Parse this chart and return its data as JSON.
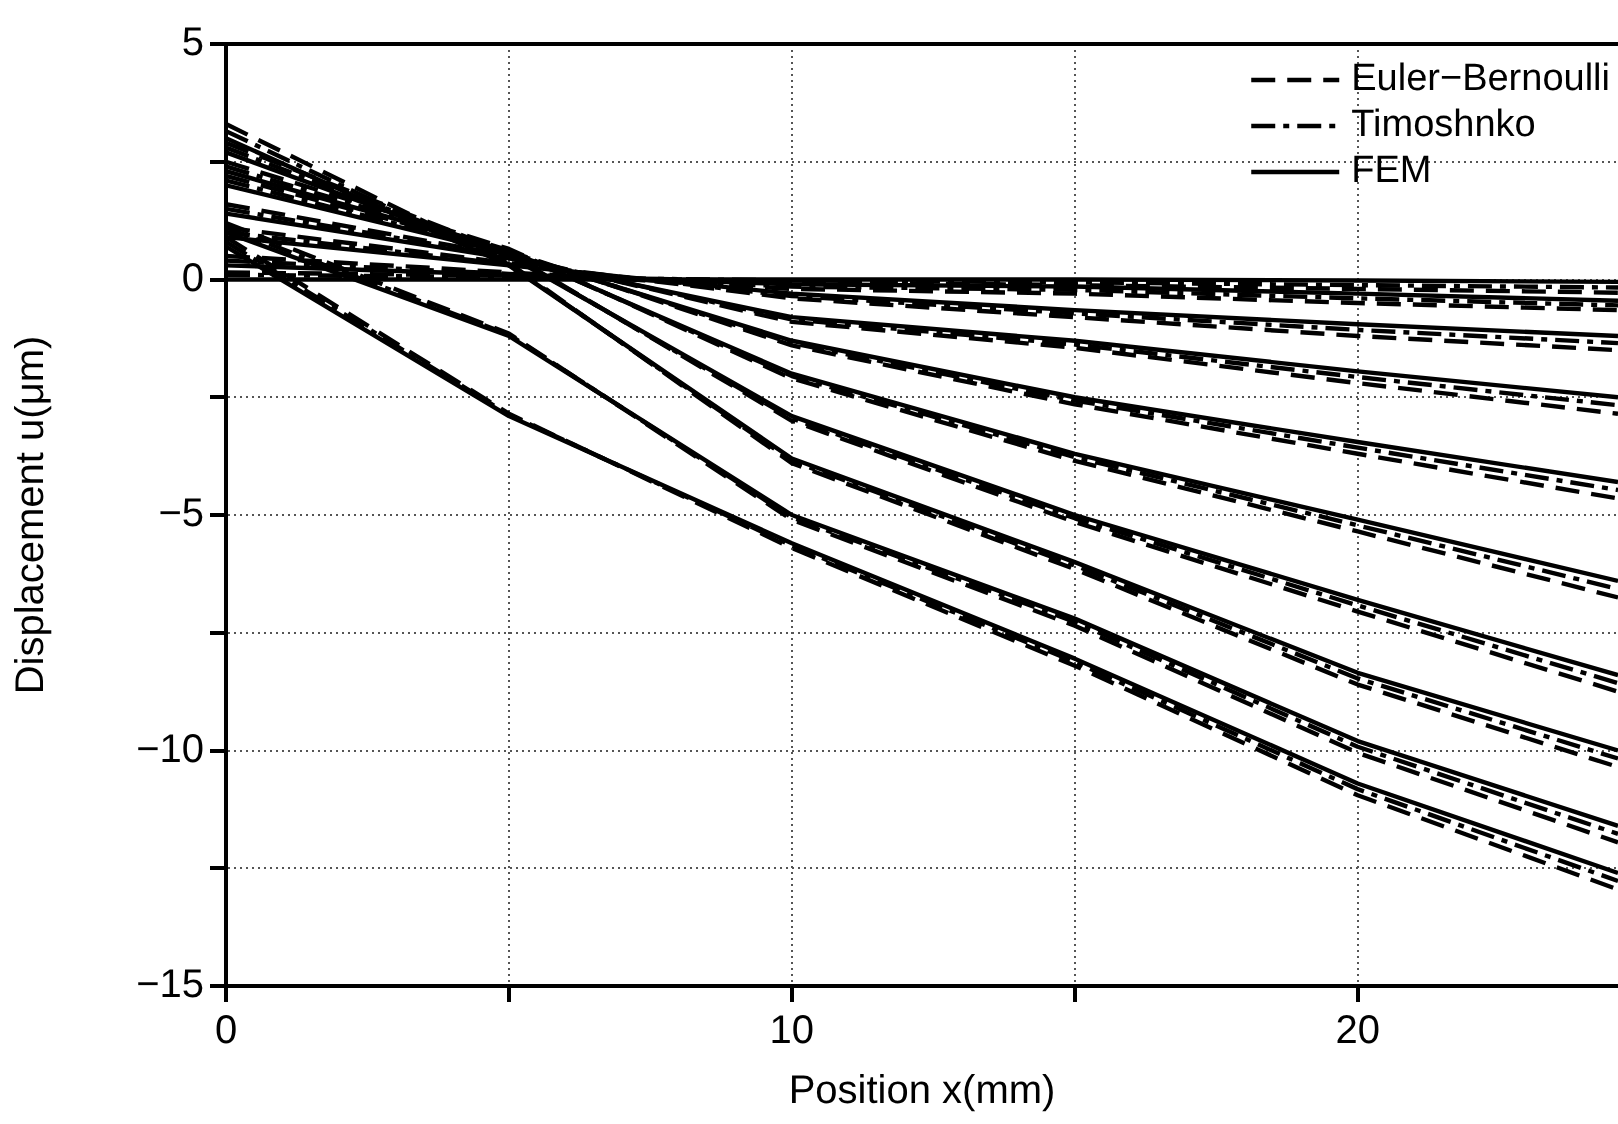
{
  "chart_data": {
    "type": "line",
    "xlabel": "Position x(mm)",
    "ylabel": "Displacement u(μm)",
    "x": [
      0,
      5,
      10,
      15,
      20,
      24.6
    ],
    "xlim": [
      0,
      24.6
    ],
    "xticks": [
      0,
      {
        "value": 5,
        "label": null
      },
      10,
      {
        "value": 15,
        "label": null
      },
      20
    ],
    "ylim": [
      -15,
      5
    ],
    "yticks": [
      -15,
      {
        "value": -12.5,
        "label": null
      },
      -10,
      {
        "value": -7.5,
        "label": null
      },
      -5,
      {
        "value": -2.5,
        "label": null
      },
      0,
      {
        "value": 2.5,
        "label": null
      },
      5
    ],
    "grid": true,
    "legend": "top right",
    "marker": "none",
    "series": [
      {
        "color": "#000000",
        "line_style": "dashed",
        "values": [
          0.15,
          0.08,
          -0.05,
          -0.12,
          -0.2,
          -0.28
        ]
      },
      {
        "color": "#000000",
        "line_style": "dashed",
        "values": [
          0.5,
          0.15,
          -0.2,
          -0.3,
          -0.5,
          -0.65
        ]
      },
      {
        "color": "#000000",
        "line_style": "dashed",
        "values": [
          1.1,
          0.35,
          -0.4,
          -0.8,
          -1.2,
          -1.5
        ]
      },
      {
        "color": "#000000",
        "line_style": "dashed",
        "values": [
          1.6,
          0.5,
          -0.9,
          -1.45,
          -2.2,
          -2.85
        ]
      },
      {
        "name": "Euler−Bernoulli",
        "color": "#000000",
        "line_style": "dashed",
        "values": [
          2.2,
          0.6,
          -1.4,
          -2.65,
          -3.7,
          -4.65
        ]
      },
      {
        "color": "#000000",
        "line_style": "dashed",
        "values": [
          2.5,
          0.65,
          -2.1,
          -3.85,
          -5.35,
          -6.75
        ]
      },
      {
        "color": "#000000",
        "line_style": "dashed",
        "values": [
          2.9,
          0.55,
          -3,
          -5.15,
          -7.05,
          -8.75
        ]
      },
      {
        "color": "#000000",
        "line_style": "dashed",
        "values": [
          3.3,
          0.35,
          -3.9,
          -6.15,
          -8.6,
          -10.35
        ]
      },
      {
        "color": "#000000",
        "line_style": "dashed",
        "values": [
          1.2,
          -1.15,
          -5.1,
          -7.35,
          -10.05,
          -11.95
        ]
      },
      {
        "color": "#000000",
        "line_style": "dashed",
        "values": [
          0.9,
          -2.85,
          -5.7,
          -8.2,
          -10.95,
          -12.95
        ]
      },
      {
        "color": "#000000",
        "line_style": "dashdot",
        "values": [
          0.1,
          0.05,
          -0.02,
          -0.06,
          -0.12,
          -0.17
        ]
      },
      {
        "color": "#000000",
        "line_style": "dashdot",
        "values": [
          0.4,
          0.12,
          -0.15,
          -0.22,
          -0.4,
          -0.55
        ]
      },
      {
        "color": "#000000",
        "line_style": "dashdot",
        "values": [
          1,
          0.32,
          -0.35,
          -0.72,
          -1.07,
          -1.35
        ]
      },
      {
        "color": "#000000",
        "line_style": "dashdot",
        "values": [
          1.5,
          0.48,
          -0.85,
          -1.38,
          -2.07,
          -2.67
        ]
      },
      {
        "name": "Timoshnko",
        "color": "#000000",
        "line_style": "dashdot",
        "values": [
          2.1,
          0.58,
          -1.35,
          -2.57,
          -3.57,
          -4.47
        ]
      },
      {
        "color": "#000000",
        "line_style": "dashdot",
        "values": [
          2.4,
          0.62,
          -2.05,
          -3.77,
          -5.22,
          -6.57
        ]
      },
      {
        "color": "#000000",
        "line_style": "dashdot",
        "values": [
          2.8,
          0.52,
          -2.95,
          -5.07,
          -6.92,
          -8.57
        ]
      },
      {
        "color": "#000000",
        "line_style": "dashdot",
        "values": [
          3.15,
          0.32,
          -3.85,
          -6.07,
          -8.47,
          -10.17
        ]
      },
      {
        "color": "#000000",
        "line_style": "dashdot",
        "values": [
          1.1,
          -1.17,
          -5.05,
          -7.27,
          -9.92,
          -11.77
        ]
      },
      {
        "color": "#000000",
        "line_style": "dashdot",
        "values": [
          0.8,
          -2.87,
          -5.65,
          -8.12,
          -10.82,
          -12.77
        ]
      },
      {
        "color": "#000000",
        "line_style": "solid",
        "values": [
          0,
          0,
          0,
          0,
          -0.02,
          -0.05
        ]
      },
      {
        "color": "#000000",
        "line_style": "solid",
        "values": [
          0.3,
          0.1,
          -0.1,
          -0.15,
          -0.3,
          -0.45
        ]
      },
      {
        "color": "#000000",
        "line_style": "solid",
        "values": [
          0.9,
          0.3,
          -0.3,
          -0.65,
          -0.95,
          -1.2
        ]
      },
      {
        "color": "#000000",
        "line_style": "solid",
        "values": [
          1.4,
          0.45,
          -0.8,
          -1.3,
          -1.95,
          -2.5
        ]
      },
      {
        "name": "FEM",
        "color": "#000000",
        "line_style": "solid",
        "values": [
          2,
          0.55,
          -1.3,
          -2.5,
          -3.45,
          -4.3
        ]
      },
      {
        "color": "#000000",
        "line_style": "solid",
        "values": [
          2.3,
          0.6,
          -2,
          -3.7,
          -5.1,
          -6.4
        ]
      },
      {
        "color": "#000000",
        "line_style": "solid",
        "values": [
          2.7,
          0.5,
          -2.9,
          -5,
          -6.8,
          -8.4
        ]
      },
      {
        "color": "#000000",
        "line_style": "solid",
        "values": [
          3,
          0.3,
          -3.8,
          -6,
          -8.35,
          -10
        ]
      },
      {
        "color": "#000000",
        "line_style": "solid",
        "values": [
          1,
          -1.2,
          -5,
          -7.2,
          -9.8,
          -11.6
        ]
      },
      {
        "color": "#000000",
        "line_style": "solid",
        "values": [
          0.7,
          -2.9,
          -5.6,
          -8.05,
          -10.7,
          -12.6
        ]
      }
    ]
  }
}
